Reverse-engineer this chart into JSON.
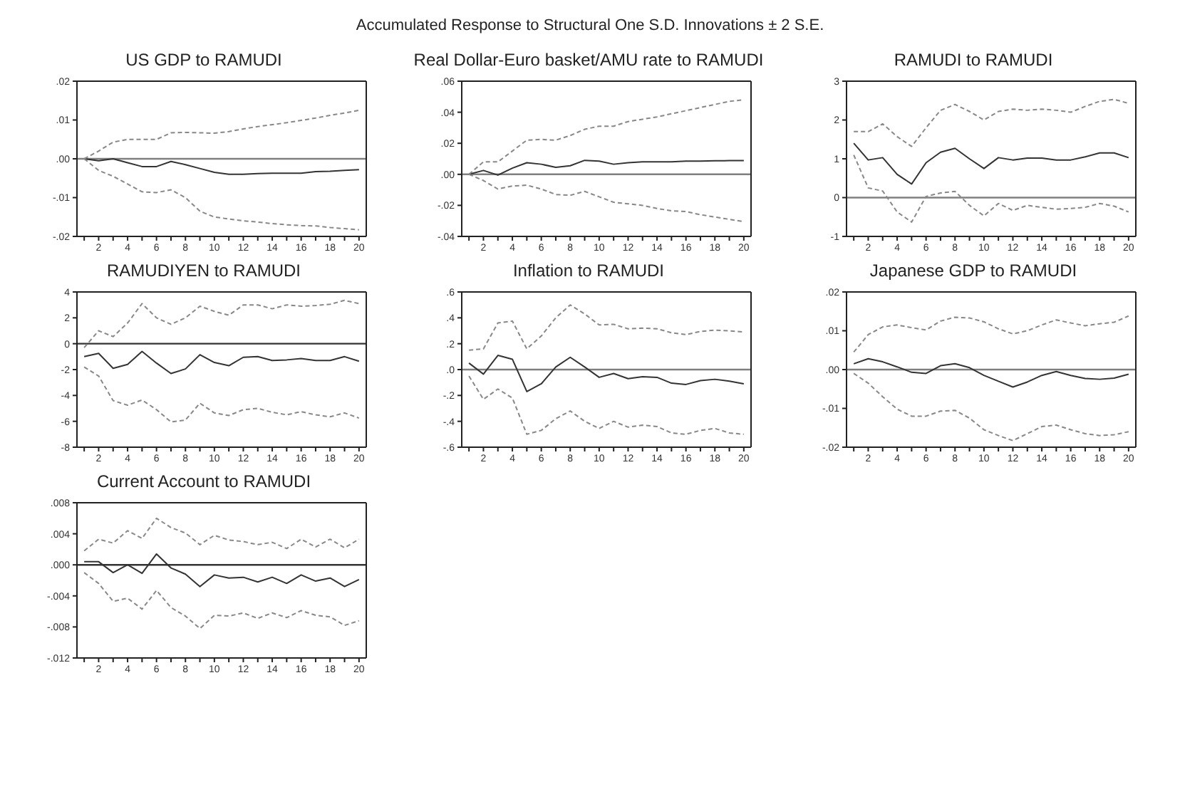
{
  "chart_data": [
    {
      "type": "line",
      "title": "US GDP to RAMUDI",
      "annotations": [
        "Accumulated Response to Structural One S.D. Innovations ± 2 S.E."
      ],
      "x": [
        1,
        2,
        3,
        4,
        5,
        6,
        7,
        8,
        9,
        10,
        11,
        12,
        13,
        14,
        15,
        16,
        17,
        18,
        19,
        20
      ],
      "xlim": [
        0.5,
        20.5
      ],
      "xticks": [
        {
          "value": 1,
          "label": null
        },
        2,
        {
          "value": 3,
          "label": null
        },
        4,
        {
          "value": 5,
          "label": null
        },
        6,
        {
          "value": 7,
          "label": null
        },
        8,
        {
          "value": 9,
          "label": null
        },
        10,
        {
          "value": 11,
          "label": null
        },
        12,
        {
          "value": 13,
          "label": null
        },
        14,
        {
          "value": 15,
          "label": null
        },
        16,
        {
          "value": 17,
          "label": null
        },
        18,
        {
          "value": 19,
          "label": null
        },
        20
      ],
      "ylim": [
        -0.02,
        0.02
      ],
      "yticks": [
        {
          "value": -0.02,
          "label": "-.02"
        },
        {
          "value": -0.01,
          "label": "-.01"
        },
        {
          "value": 0,
          "label": ".00"
        },
        {
          "value": 0.01,
          "label": ".01"
        },
        {
          "value": 0.02,
          "label": ".02"
        }
      ],
      "marker": "none",
      "ref_lines": [
        {
          "axis": "y",
          "value": 0,
          "color": "#808080"
        }
      ],
      "series": [
        {
          "color": "#333333",
          "line_style": "solid",
          "values": [
            0,
            -0.0005,
            0,
            -0.001,
            -0.002,
            -0.002,
            -0.0007,
            -0.0015,
            -0.0025,
            -0.0035,
            -0.004,
            -0.004,
            -0.0038,
            -0.0037,
            -0.0037,
            -0.0037,
            -0.0033,
            -0.0032,
            -0.003,
            -0.0028
          ]
        },
        {
          "color": "#888888",
          "line_style": "dashed",
          "values": [
            0,
            0.002,
            0.0043,
            0.005,
            0.005,
            0.005,
            0.0067,
            0.0068,
            0.0067,
            0.0066,
            0.007,
            0.0077,
            0.0083,
            0.0088,
            0.0093,
            0.0099,
            0.0105,
            0.0112,
            0.0118,
            0.0125
          ]
        },
        {
          "color": "#888888",
          "line_style": "dashed",
          "values": [
            0,
            -0.003,
            -0.0045,
            -0.0065,
            -0.0085,
            -0.0087,
            -0.008,
            -0.01,
            -0.0135,
            -0.015,
            -0.0155,
            -0.016,
            -0.0163,
            -0.0167,
            -0.017,
            -0.0172,
            -0.0173,
            -0.0177,
            -0.018,
            -0.0183
          ]
        }
      ]
    },
    {
      "type": "line",
      "title": "Real Dollar-Euro basket/AMU rate to RAMUDI",
      "x": [
        1,
        2,
        3,
        4,
        5,
        6,
        7,
        8,
        9,
        10,
        11,
        12,
        13,
        14,
        15,
        16,
        17,
        18,
        19,
        20
      ],
      "xlim": [
        0.5,
        20.5
      ],
      "xticks": [
        {
          "value": 1,
          "label": null
        },
        2,
        {
          "value": 3,
          "label": null
        },
        4,
        {
          "value": 5,
          "label": null
        },
        6,
        {
          "value": 7,
          "label": null
        },
        8,
        {
          "value": 9,
          "label": null
        },
        10,
        {
          "value": 11,
          "label": null
        },
        12,
        {
          "value": 13,
          "label": null
        },
        14,
        {
          "value": 15,
          "label": null
        },
        16,
        {
          "value": 17,
          "label": null
        },
        18,
        {
          "value": 19,
          "label": null
        },
        20
      ],
      "ylim": [
        -0.04,
        0.06
      ],
      "yticks": [
        {
          "value": -0.04,
          "label": "-.04"
        },
        {
          "value": -0.02,
          "label": "-.02"
        },
        {
          "value": 0,
          "label": ".00"
        },
        {
          "value": 0.02,
          "label": ".02"
        },
        {
          "value": 0.04,
          "label": ".04"
        },
        {
          "value": 0.06,
          "label": ".06"
        }
      ],
      "marker": "none",
      "ref_lines": [
        {
          "axis": "y",
          "value": 0,
          "color": "#808080"
        }
      ],
      "series": [
        {
          "color": "#333333",
          "line_style": "solid",
          "values": [
            0,
            0.0025,
            -0.0005,
            0.004,
            0.0075,
            0.0065,
            0.0045,
            0.0055,
            0.009,
            0.0085,
            0.0065,
            0.0075,
            0.008,
            0.008,
            0.008,
            0.0085,
            0.0085,
            0.0087,
            0.0088,
            0.0088
          ]
        },
        {
          "color": "#888888",
          "line_style": "dashed",
          "values": [
            0,
            0.008,
            0.008,
            0.015,
            0.022,
            0.0225,
            0.022,
            0.025,
            0.029,
            0.031,
            0.031,
            0.034,
            0.0355,
            0.037,
            0.039,
            0.041,
            0.043,
            0.045,
            0.047,
            0.048
          ]
        },
        {
          "color": "#888888",
          "line_style": "dashed",
          "values": [
            0,
            -0.004,
            -0.0095,
            -0.0075,
            -0.007,
            -0.0095,
            -0.013,
            -0.0135,
            -0.011,
            -0.0145,
            -0.018,
            -0.019,
            -0.02,
            -0.022,
            -0.0235,
            -0.024,
            -0.026,
            -0.0275,
            -0.029,
            -0.0305
          ]
        }
      ]
    },
    {
      "type": "line",
      "title": "RAMUDI to RAMUDI",
      "x": [
        1,
        2,
        3,
        4,
        5,
        6,
        7,
        8,
        9,
        10,
        11,
        12,
        13,
        14,
        15,
        16,
        17,
        18,
        19,
        20
      ],
      "xlim": [
        0.5,
        20.5
      ],
      "xticks": [
        {
          "value": 1,
          "label": null
        },
        2,
        {
          "value": 3,
          "label": null
        },
        4,
        {
          "value": 5,
          "label": null
        },
        6,
        {
          "value": 7,
          "label": null
        },
        8,
        {
          "value": 9,
          "label": null
        },
        10,
        {
          "value": 11,
          "label": null
        },
        12,
        {
          "value": 13,
          "label": null
        },
        14,
        {
          "value": 15,
          "label": null
        },
        16,
        {
          "value": 17,
          "label": null
        },
        18,
        {
          "value": 19,
          "label": null
        },
        20
      ],
      "ylim": [
        -1,
        3
      ],
      "yticks": [
        -1,
        0,
        1,
        2,
        3
      ],
      "marker": "none",
      "ref_lines": [
        {
          "axis": "y",
          "value": 0,
          "color": "#808080"
        }
      ],
      "series": [
        {
          "color": "#333333",
          "line_style": "solid",
          "values": [
            1.4,
            0.97,
            1.03,
            0.6,
            0.35,
            0.9,
            1.17,
            1.27,
            1.0,
            0.75,
            1.03,
            0.97,
            1.02,
            1.02,
            0.97,
            0.97,
            1.05,
            1.15,
            1.15,
            1.03
          ]
        },
        {
          "color": "#888888",
          "line_style": "dashed",
          "values": [
            1.7,
            1.7,
            1.9,
            1.57,
            1.32,
            1.8,
            2.25,
            2.4,
            2.22,
            2.0,
            2.22,
            2.28,
            2.25,
            2.28,
            2.25,
            2.2,
            2.35,
            2.48,
            2.53,
            2.43
          ]
        },
        {
          "color": "#888888",
          "line_style": "dashed",
          "values": [
            1.1,
            0.25,
            0.17,
            -0.37,
            -0.63,
            0.03,
            0.12,
            0.16,
            -0.2,
            -0.47,
            -0.15,
            -0.33,
            -0.2,
            -0.25,
            -0.3,
            -0.28,
            -0.25,
            -0.15,
            -0.22,
            -0.37
          ]
        }
      ]
    },
    {
      "type": "line",
      "title": "RAMUDIYEN to RAMUDI",
      "x": [
        1,
        2,
        3,
        4,
        5,
        6,
        7,
        8,
        9,
        10,
        11,
        12,
        13,
        14,
        15,
        16,
        17,
        18,
        19,
        20
      ],
      "xlim": [
        0.5,
        20.5
      ],
      "xticks": [
        {
          "value": 1,
          "label": null
        },
        2,
        {
          "value": 3,
          "label": null
        },
        4,
        {
          "value": 5,
          "label": null
        },
        6,
        {
          "value": 7,
          "label": null
        },
        8,
        {
          "value": 9,
          "label": null
        },
        10,
        {
          "value": 11,
          "label": null
        },
        12,
        {
          "value": 13,
          "label": null
        },
        14,
        {
          "value": 15,
          "label": null
        },
        16,
        {
          "value": 17,
          "label": null
        },
        18,
        {
          "value": 19,
          "label": null
        },
        20
      ],
      "ylim": [
        -8,
        4
      ],
      "yticks": [
        -8,
        -6,
        -4,
        -2,
        0,
        2,
        4
      ],
      "marker": "none",
      "ref_lines": [
        {
          "axis": "y",
          "value": 0,
          "color": "#333333"
        }
      ],
      "series": [
        {
          "color": "#333333",
          "line_style": "solid",
          "values": [
            -1.0,
            -0.75,
            -1.9,
            -1.6,
            -0.6,
            -1.5,
            -2.3,
            -1.95,
            -0.85,
            -1.45,
            -1.7,
            -1.05,
            -1.0,
            -1.3,
            -1.25,
            -1.15,
            -1.3,
            -1.3,
            -1.0,
            -1.35
          ]
        },
        {
          "color": "#888888",
          "line_style": "dashed",
          "values": [
            -0.3,
            1.0,
            0.55,
            1.6,
            3.1,
            2.0,
            1.5,
            2.0,
            2.9,
            2.5,
            2.2,
            3.0,
            3.0,
            2.7,
            3.0,
            2.9,
            2.95,
            3.05,
            3.35,
            3.1
          ]
        },
        {
          "color": "#888888",
          "line_style": "dashed",
          "values": [
            -1.8,
            -2.5,
            -4.4,
            -4.75,
            -4.35,
            -5.1,
            -6.05,
            -5.9,
            -4.6,
            -5.35,
            -5.55,
            -5.1,
            -5.0,
            -5.3,
            -5.5,
            -5.25,
            -5.5,
            -5.65,
            -5.35,
            -5.75
          ]
        }
      ]
    },
    {
      "type": "line",
      "title": "Inflation to RAMUDI",
      "x": [
        1,
        2,
        3,
        4,
        5,
        6,
        7,
        8,
        9,
        10,
        11,
        12,
        13,
        14,
        15,
        16,
        17,
        18,
        19,
        20
      ],
      "xlim": [
        0.5,
        20.5
      ],
      "xticks": [
        {
          "value": 1,
          "label": null
        },
        2,
        {
          "value": 3,
          "label": null
        },
        4,
        {
          "value": 5,
          "label": null
        },
        6,
        {
          "value": 7,
          "label": null
        },
        8,
        {
          "value": 9,
          "label": null
        },
        10,
        {
          "value": 11,
          "label": null
        },
        12,
        {
          "value": 13,
          "label": null
        },
        14,
        {
          "value": 15,
          "label": null
        },
        16,
        {
          "value": 17,
          "label": null
        },
        18,
        {
          "value": 19,
          "label": null
        },
        20
      ],
      "ylim": [
        -0.6,
        0.6
      ],
      "yticks": [
        {
          "value": -0.6,
          "label": "-.6"
        },
        {
          "value": -0.4,
          "label": "-.4"
        },
        {
          "value": -0.2,
          "label": "-.2"
        },
        {
          "value": 0,
          "label": ".0"
        },
        {
          "value": 0.2,
          "label": ".2"
        },
        {
          "value": 0.4,
          "label": ".4"
        },
        {
          "value": 0.6,
          "label": ".6"
        }
      ],
      "marker": "none",
      "ref_lines": [
        {
          "axis": "y",
          "value": 0,
          "color": "#808080"
        }
      ],
      "series": [
        {
          "color": "#333333",
          "line_style": "solid",
          "values": [
            0.05,
            -0.035,
            0.11,
            0.08,
            -0.17,
            -0.11,
            0.02,
            0.095,
            0.02,
            -0.06,
            -0.03,
            -0.07,
            -0.055,
            -0.06,
            -0.105,
            -0.115,
            -0.085,
            -0.075,
            -0.09,
            -0.11
          ]
        },
        {
          "color": "#888888",
          "line_style": "dashed",
          "values": [
            0.15,
            0.16,
            0.36,
            0.375,
            0.16,
            0.26,
            0.4,
            0.5,
            0.43,
            0.345,
            0.35,
            0.315,
            0.32,
            0.315,
            0.285,
            0.27,
            0.295,
            0.305,
            0.3,
            0.29
          ]
        },
        {
          "color": "#888888",
          "line_style": "dashed",
          "values": [
            -0.05,
            -0.23,
            -0.15,
            -0.22,
            -0.5,
            -0.47,
            -0.38,
            -0.32,
            -0.4,
            -0.455,
            -0.4,
            -0.445,
            -0.43,
            -0.44,
            -0.49,
            -0.5,
            -0.47,
            -0.455,
            -0.49,
            -0.5
          ]
        }
      ]
    },
    {
      "type": "line",
      "title": "Japanese GDP to RAMUDI",
      "x": [
        1,
        2,
        3,
        4,
        5,
        6,
        7,
        8,
        9,
        10,
        11,
        12,
        13,
        14,
        15,
        16,
        17,
        18,
        19,
        20
      ],
      "xlim": [
        0.5,
        20.5
      ],
      "xticks": [
        {
          "value": 1,
          "label": null
        },
        2,
        {
          "value": 3,
          "label": null
        },
        4,
        {
          "value": 5,
          "label": null
        },
        6,
        {
          "value": 7,
          "label": null
        },
        8,
        {
          "value": 9,
          "label": null
        },
        10,
        {
          "value": 11,
          "label": null
        },
        12,
        {
          "value": 13,
          "label": null
        },
        14,
        {
          "value": 15,
          "label": null
        },
        16,
        {
          "value": 17,
          "label": null
        },
        18,
        {
          "value": 19,
          "label": null
        },
        20
      ],
      "ylim": [
        -0.02,
        0.02
      ],
      "yticks": [
        {
          "value": -0.02,
          "label": "-.02"
        },
        {
          "value": -0.01,
          "label": "-.01"
        },
        {
          "value": 0,
          "label": ".00"
        },
        {
          "value": 0.01,
          "label": ".01"
        },
        {
          "value": 0.02,
          "label": ".02"
        }
      ],
      "marker": "none",
      "ref_lines": [
        {
          "axis": "y",
          "value": 0,
          "color": "#808080"
        }
      ],
      "series": [
        {
          "color": "#333333",
          "line_style": "solid",
          "values": [
            0.0015,
            0.0028,
            0.002,
            0.0007,
            -0.0007,
            -0.001,
            0.001,
            0.0015,
            0.0005,
            -0.0015,
            -0.003,
            -0.0045,
            -0.0032,
            -0.0015,
            -0.0005,
            -0.0015,
            -0.0023,
            -0.0025,
            -0.0022,
            -0.0012
          ]
        },
        {
          "color": "#888888",
          "line_style": "dashed",
          "values": [
            0.0045,
            0.009,
            0.011,
            0.0115,
            0.0108,
            0.0102,
            0.0125,
            0.0135,
            0.0133,
            0.0123,
            0.0105,
            0.0092,
            0.01,
            0.0115,
            0.0128,
            0.012,
            0.0113,
            0.0118,
            0.0122,
            0.0138
          ]
        },
        {
          "color": "#888888",
          "line_style": "dashed",
          "values": [
            -0.001,
            -0.0035,
            -0.007,
            -0.0102,
            -0.012,
            -0.012,
            -0.0107,
            -0.0105,
            -0.0125,
            -0.0155,
            -0.017,
            -0.0183,
            -0.0165,
            -0.0147,
            -0.0143,
            -0.0155,
            -0.0165,
            -0.017,
            -0.0168,
            -0.016
          ]
        }
      ]
    },
    {
      "type": "line",
      "title": "Current Account to RAMUDI",
      "x": [
        1,
        2,
        3,
        4,
        5,
        6,
        7,
        8,
        9,
        10,
        11,
        12,
        13,
        14,
        15,
        16,
        17,
        18,
        19,
        20
      ],
      "xlim": [
        0.5,
        20.5
      ],
      "xticks": [
        {
          "value": 1,
          "label": null
        },
        2,
        {
          "value": 3,
          "label": null
        },
        4,
        {
          "value": 5,
          "label": null
        },
        6,
        {
          "value": 7,
          "label": null
        },
        8,
        {
          "value": 9,
          "label": null
        },
        10,
        {
          "value": 11,
          "label": null
        },
        12,
        {
          "value": 13,
          "label": null
        },
        14,
        {
          "value": 15,
          "label": null
        },
        16,
        {
          "value": 17,
          "label": null
        },
        18,
        {
          "value": 19,
          "label": null
        },
        20
      ],
      "ylim": [
        -0.012,
        0.008
      ],
      "yticks": [
        {
          "value": -0.012,
          "label": "-.012"
        },
        {
          "value": -0.008,
          "label": "-.008"
        },
        {
          "value": -0.004,
          "label": "-.004"
        },
        {
          "value": 0,
          "label": ".000"
        },
        {
          "value": 0.004,
          "label": ".004"
        },
        {
          "value": 0.008,
          "label": ".008"
        }
      ],
      "marker": "none",
      "ref_lines": [
        {
          "axis": "y",
          "value": 0,
          "color": "#333333"
        }
      ],
      "series": [
        {
          "color": "#333333",
          "line_style": "solid",
          "values": [
            0.0004,
            0.0004,
            -0.001,
            0.0,
            -0.0011,
            0.0014,
            -0.0004,
            -0.0012,
            -0.0028,
            -0.0013,
            -0.0017,
            -0.0016,
            -0.0022,
            -0.0016,
            -0.0024,
            -0.0013,
            -0.0021,
            -0.0017,
            -0.0028,
            -0.0019
          ]
        },
        {
          "color": "#888888",
          "line_style": "dashed",
          "values": [
            0.0018,
            0.0033,
            0.0028,
            0.0044,
            0.0034,
            0.006,
            0.0048,
            0.0041,
            0.0026,
            0.0038,
            0.0032,
            0.003,
            0.0026,
            0.0029,
            0.0021,
            0.0033,
            0.0023,
            0.0033,
            0.0022,
            0.0033
          ]
        },
        {
          "color": "#888888",
          "line_style": "dashed",
          "values": [
            -0.001,
            -0.0024,
            -0.0047,
            -0.0043,
            -0.0057,
            -0.0033,
            -0.0055,
            -0.0066,
            -0.0082,
            -0.0065,
            -0.0066,
            -0.0062,
            -0.0069,
            -0.0062,
            -0.0068,
            -0.0059,
            -0.0065,
            -0.0067,
            -0.0078,
            -0.0072
          ]
        }
      ]
    }
  ]
}
